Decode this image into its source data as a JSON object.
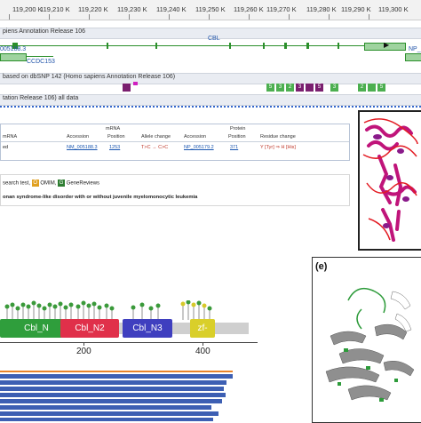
{
  "ruler": {
    "ticks": [
      "119,200 K",
      "119,210 K",
      "119,220 K",
      "119,230 K",
      "119,240 K",
      "119,250 K",
      "119,260 K",
      "119,270 K",
      "119,280 K",
      "119,290 K",
      "119,300 K"
    ]
  },
  "tracks": {
    "annotation_release": "piens Annotation Release 106",
    "snp_track": "based on dbSNP 142 (Homo sapiens Annotation Release 106)",
    "all_data": "tation Release 106) all data"
  },
  "genes": {
    "cbl": "CBL",
    "np_label": "NP_",
    "nm_label": "005188.3",
    "ccdc": "CCDC153"
  },
  "snp_markers": [
    "5",
    "3",
    "2",
    "3",
    "",
    "5",
    "3",
    "2",
    "",
    "5",
    "3"
  ],
  "variant_table": {
    "mrna_header": "mRNA",
    "protein_header": "Protein",
    "left_header": "mRNA",
    "columns": [
      "Accession",
      "Position",
      "Allele change",
      "Accession",
      "Position",
      "Residue change"
    ],
    "row_prefix": "ed",
    "row": [
      "NM_005188.3",
      "1253",
      "T>C → C>C",
      "NP_005179.2",
      "371",
      "Y [Tyr] ⇒ H [His]"
    ]
  },
  "legend": {
    "line1_prefix": "search test,",
    "omim_badge": "O",
    "omim": "OMIM,",
    "gr_badge": "G",
    "genereviews": "GeneReviews",
    "disorder": "onan syndrome-like disorder with or without juvenile myelomonocytic leukemia"
  },
  "panel_e_label": "(e)",
  "domains": [
    {
      "name": "Cbl_N",
      "color": "#2f9e3c"
    },
    {
      "name": "Cbl_N2",
      "color": "#e0304a"
    },
    {
      "name": "Cbl_N3",
      "color": "#3f3fbf"
    },
    {
      "name": "zf-",
      "color": "#d9cf2a"
    }
  ],
  "axis": [
    "200",
    "400"
  ]
}
